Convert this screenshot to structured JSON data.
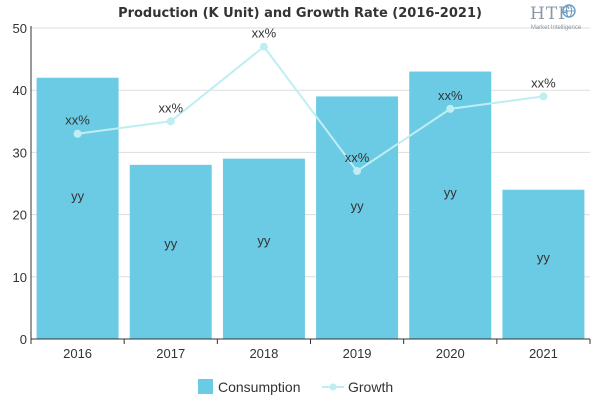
{
  "chart_data": {
    "type": "bar",
    "title": "Production (K Unit) and Growth Rate (2016-2021)",
    "categories": [
      "2016",
      "2017",
      "2018",
      "2019",
      "2020",
      "2021"
    ],
    "ylim": [
      0,
      50
    ],
    "yticks": [
      0,
      10,
      20,
      30,
      40,
      50
    ],
    "grid": true,
    "legend_position": "bottom",
    "series": [
      {
        "name": "Consumption",
        "type": "bar",
        "color": "#6ccbe4",
        "values": [
          42,
          28,
          29,
          39,
          43,
          24
        ],
        "labels": [
          "yy",
          "yy",
          "yy",
          "yy",
          "yy",
          "yy"
        ]
      },
      {
        "name": "Growth",
        "type": "line",
        "color": "#bfeef2",
        "values": [
          33,
          35,
          47,
          27,
          37,
          39
        ],
        "labels": [
          "xx%",
          "xx%",
          "xx%",
          "xx%",
          "xx%",
          "xx%"
        ]
      }
    ]
  },
  "logo": {
    "brand": "HTF",
    "tagline": "Market Intelligence"
  }
}
